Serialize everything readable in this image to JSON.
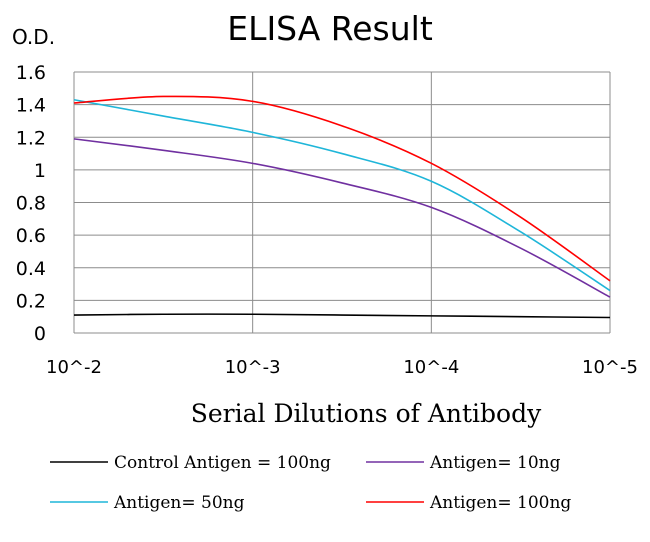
{
  "chart_data": {
    "type": "line",
    "title": "ELISA Result",
    "ylabel": "O.D.",
    "xlabel": "Serial  Dilutions  of Antibody",
    "x": [
      -2,
      -3,
      -4,
      -5
    ],
    "x_tick_labels": [
      "10^-2",
      "10^-3",
      "10^-4",
      "10^-5"
    ],
    "y_tick_labels": [
      "0",
      "0.2",
      "0.4",
      "0.6",
      "0.8",
      "1",
      "1.2",
      "1.4",
      "1.6"
    ],
    "ylim": [
      0,
      1.6
    ],
    "grid": true,
    "legend_position": "bottom",
    "series": [
      {
        "name": "Control Antigen = 100ng",
        "color": "#000000",
        "points": [
          [
            -2,
            0.11
          ],
          [
            -2.5,
            0.115
          ],
          [
            -3,
            0.115
          ],
          [
            -3.5,
            0.11
          ],
          [
            -4,
            0.105
          ],
          [
            -4.5,
            0.1
          ],
          [
            -5,
            0.095
          ]
        ]
      },
      {
        "name": "Antigen= 10ng",
        "color": "#7030a0",
        "points": [
          [
            -2,
            1.19
          ],
          [
            -2.5,
            1.12
          ],
          [
            -3,
            1.04
          ],
          [
            -3.5,
            0.92
          ],
          [
            -4,
            0.77
          ],
          [
            -4.5,
            0.52
          ],
          [
            -5,
            0.22
          ]
        ]
      },
      {
        "name": "Antigen= 50ng",
        "color": "#1fb6d9",
        "points": [
          [
            -2,
            1.43
          ],
          [
            -2.5,
            1.33
          ],
          [
            -3,
            1.23
          ],
          [
            -3.5,
            1.1
          ],
          [
            -4,
            0.93
          ],
          [
            -4.5,
            0.62
          ],
          [
            -5,
            0.26
          ]
        ]
      },
      {
        "name": "Antigen= 100ng",
        "color": "#ff0000",
        "points": [
          [
            -2,
            1.41
          ],
          [
            -2.5,
            1.45
          ],
          [
            -3,
            1.42
          ],
          [
            -3.5,
            1.27
          ],
          [
            -4,
            1.04
          ],
          [
            -4.5,
            0.71
          ],
          [
            -5,
            0.32
          ]
        ]
      }
    ]
  }
}
